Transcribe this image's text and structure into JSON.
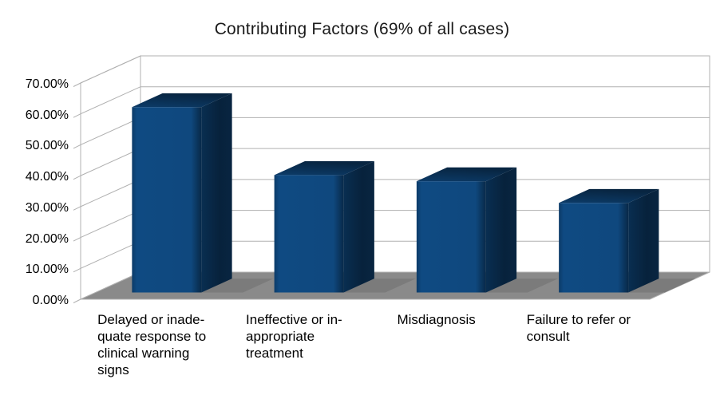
{
  "chart_data": {
    "type": "bar",
    "variant": "3d-column",
    "title": "Contributing Factors (69% of all cases)",
    "categories": [
      "Delayed or inadequate response to clinical warning signs",
      "Ineffective or inappropriate treatment",
      "Misdiagnosis",
      "Failure to refer or consult"
    ],
    "category_label_lines": [
      [
        "Delayed or inade-",
        "quate response to",
        "clinical warning",
        "signs"
      ],
      [
        "Ineffective or in-",
        "appropriate",
        "treatment"
      ],
      [
        "Misdiagnosis"
      ],
      [
        "Failure to refer or",
        "consult"
      ]
    ],
    "values": [
      60,
      38,
      36,
      29
    ],
    "value_unit": "%",
    "ylim": [
      0,
      70
    ],
    "y_tick_step": 10,
    "y_ticks": [
      "0.00%",
      "10.00%",
      "20.00%",
      "30.00%",
      "40.00%",
      "50.00%",
      "60.00%",
      "70.00%"
    ],
    "xlabel": "",
    "ylabel": "",
    "grid": true,
    "legend": "none",
    "colors": {
      "bar_front": "#0F4A82",
      "bar_side_dark": "#092845",
      "wall": "#FFFFFF",
      "floor": "#8A8A8A",
      "bar_shadow": "#7B7B7B",
      "grid_line": "#B0B0B0",
      "axis_text": "#000000",
      "title_text": "#1A1A1A",
      "background": "#FFFFFF"
    }
  }
}
